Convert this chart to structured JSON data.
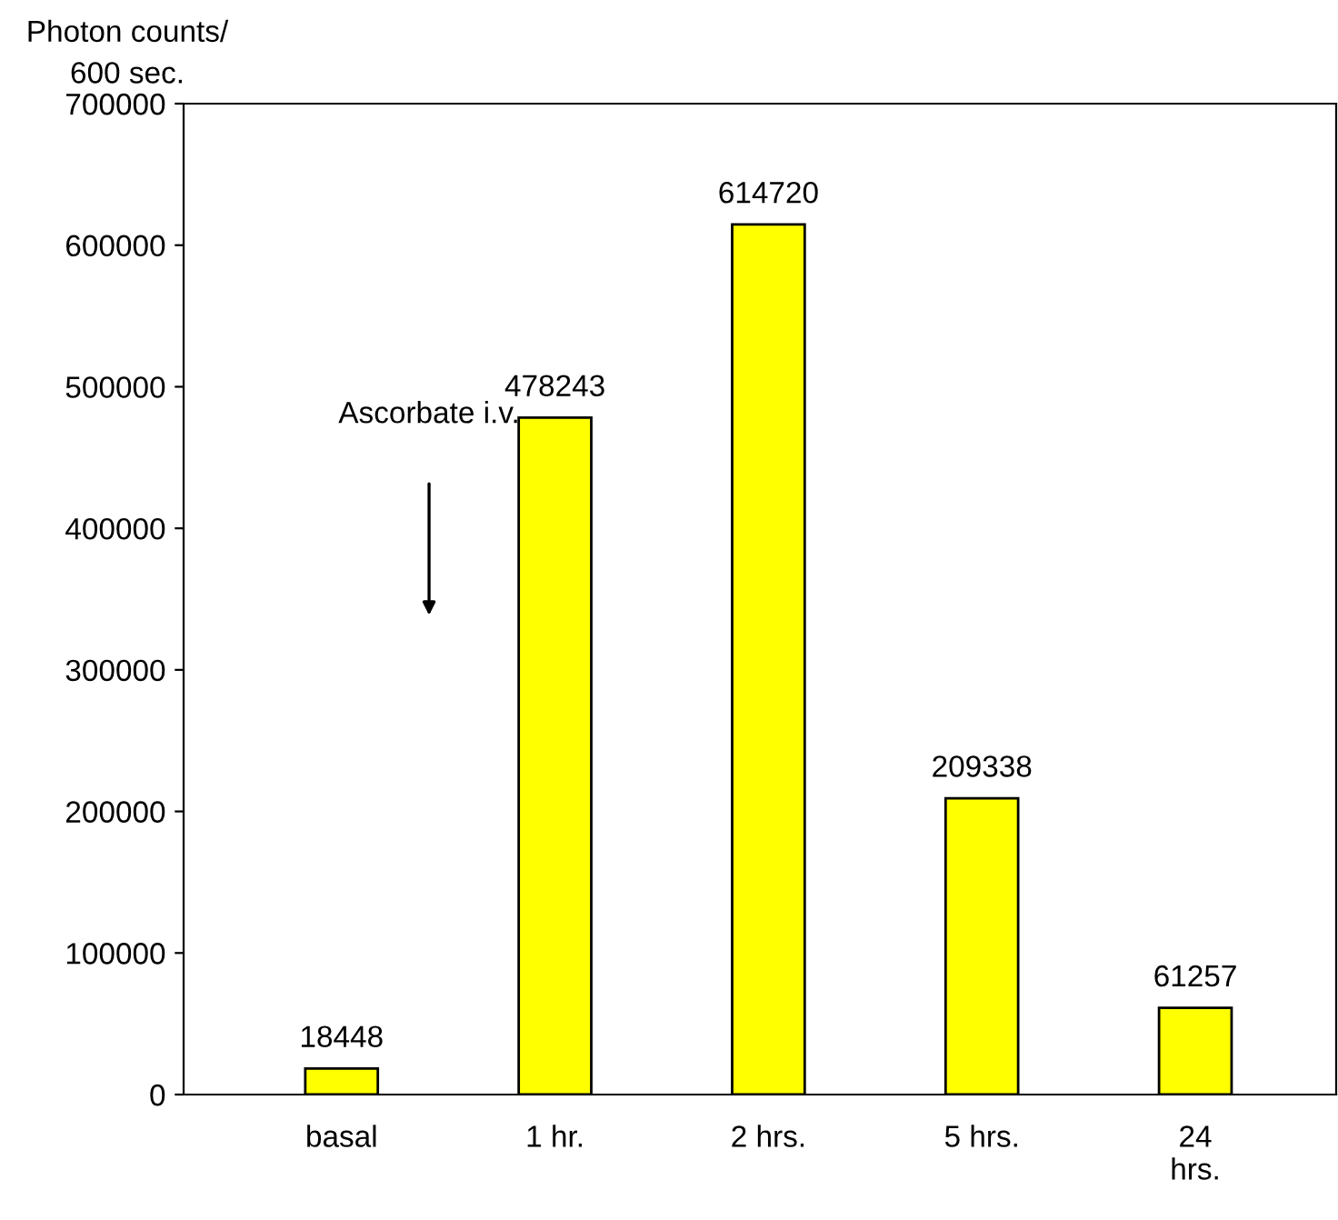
{
  "chart_data": {
    "type": "bar",
    "ylabel": "Photon counts/\n600 sec.",
    "categories": [
      "basal",
      "1 hr.",
      "2 hrs.",
      "5 hrs.",
      "24\nhrs."
    ],
    "values": [
      18448,
      478243,
      614720,
      209338,
      61257
    ],
    "color": "#ffff00",
    "data_labels": true,
    "ylim": [
      0,
      700000
    ],
    "yticks": [
      0,
      100000,
      200000,
      300000,
      400000,
      500000,
      600000,
      700000
    ],
    "grid": false,
    "legend": false,
    "annotations": [
      "Ascorbate i.v."
    ]
  }
}
